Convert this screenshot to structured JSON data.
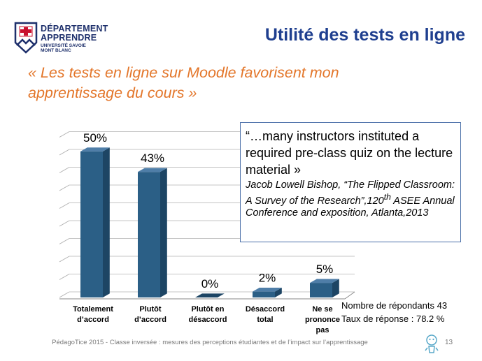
{
  "logo": {
    "line1": "DÉPARTEMENT",
    "line2": "APPRENDRE",
    "line3": "UNIVERSITÉ SAVOIE",
    "line4": "MONT BLANC"
  },
  "slide_title": "Utilité des tests en ligne",
  "subtitle": "« Les tests en ligne sur Moodle favorisent mon apprentissage du cours »",
  "chart_data": {
    "type": "bar",
    "categories": [
      "Totalement d’accord",
      "Plutôt d’accord",
      "Plutôt en désaccord",
      "Désaccord total",
      "Ne se prononce pas"
    ],
    "values": [
      50,
      43,
      0,
      2,
      5
    ],
    "data_labels": [
      "50%",
      "43%",
      "0%",
      "2%",
      "5%"
    ],
    "ylim": [
      0,
      55
    ],
    "grid": true,
    "bar_color": "#2b5f86"
  },
  "quote": {
    "text": "“…many instructors instituted a required pre-class quiz on the lecture material »",
    "citation_part1": "Jacob Lowell Bishop, “The Flipped Classroom: A Survey of the Research”,120",
    "citation_sup": "th",
    "citation_part2": " ASEE Annual Conference and exposition, Atlanta,2013"
  },
  "stats": {
    "respondents": "Nombre de répondants 43",
    "response_rate": "Taux de réponse : 78.2 %"
  },
  "footer": "PédagoTice 2015 - Classe inversée : mesures des perceptions étudiantes et de l’impact sur l’apprentissage",
  "page_number": "13"
}
